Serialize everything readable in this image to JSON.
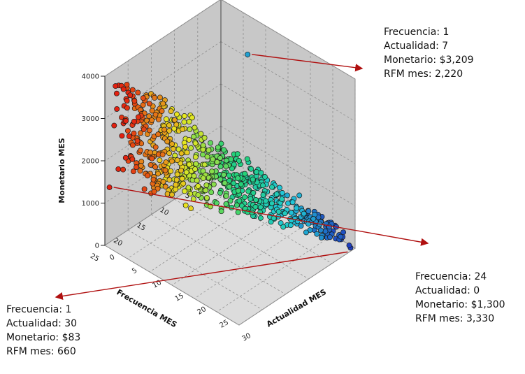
{
  "chart_data": {
    "type": "scatter",
    "projection": "3d",
    "title": "",
    "xlabel": "Frecuencia MES",
    "ylabel": "Actualidad MES",
    "zlabel": "Monetario MES",
    "xlim": [
      0,
      25
    ],
    "ylim": [
      0,
      30
    ],
    "zlim": [
      0,
      4000
    ],
    "x_ticks": [
      "0",
      "5",
      "10",
      "15",
      "20",
      "25"
    ],
    "y_ticks": [
      "0",
      "5",
      "10",
      "15",
      "20",
      "25",
      "30"
    ],
    "z_ticks": [
      "0",
      "1000",
      "2000",
      "3000",
      "4000"
    ],
    "grid": true,
    "color_scale": {
      "low": "#1f3fbf",
      "mid": "#22d17a",
      "high": "#e32010",
      "by": "Frecuencia MES"
    },
    "points": [
      {
        "x": 1,
        "y": 30,
        "z": 83
      },
      {
        "x": 1,
        "y": 7,
        "z": 3209
      },
      {
        "x": 24,
        "y": 0,
        "z": 1300
      }
    ]
  },
  "annotations": [
    {
      "id": "top",
      "lines": [
        "Frecuencia: 1",
        "Actualidad: 7",
        "Monetario: $3,209",
        "RFM mes: 2,220"
      ]
    },
    {
      "id": "right",
      "lines": [
        "Frecuencia: 24",
        "Actualidad: 0",
        "Monetario: $1,300",
        "RFM mes: 3,330"
      ]
    },
    {
      "id": "left",
      "lines": [
        "Frecuencia: 1",
        "Actualidad: 30",
        "Monetario: $83",
        "RFM mes: 660"
      ]
    }
  ],
  "colors": {
    "arrow": "#b01010",
    "wall": "#c8c8c8",
    "floor": "#dcdcdc",
    "grid": "#8f8f8f"
  }
}
